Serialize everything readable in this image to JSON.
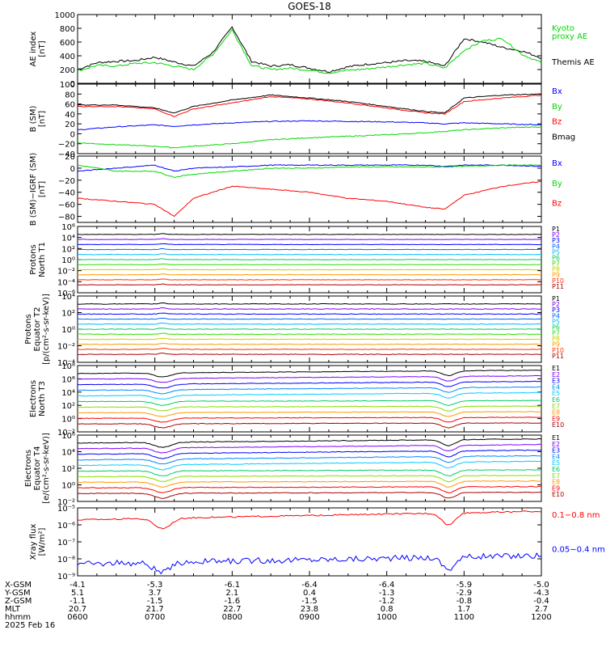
{
  "title": "GOES-18",
  "time_labels": [
    "0600",
    "0700",
    "0800",
    "0900",
    "1000",
    "1100",
    "1200"
  ],
  "footer": {
    "rows": [
      {
        "name": "X-GSM",
        "values": [
          "-4.1",
          "-5.3",
          "-6.1",
          "-6.4",
          "-6.4",
          "-5.9",
          "-5.0"
        ]
      },
      {
        "name": "Y-GSM",
        "values": [
          "5.1",
          "3.7",
          "2.1",
          "0.4",
          "-1.3",
          "-2.9",
          "-4.3"
        ]
      },
      {
        "name": "Z-GSM",
        "values": [
          "-1.1",
          "-1.5",
          "-1.6",
          "-1.5",
          "-1.2",
          "-0.8",
          "-0.4"
        ]
      },
      {
        "name": "MLT",
        "values": [
          "20.7",
          "21.7",
          "22.7",
          "23.8",
          "0.8",
          "1.7",
          "2.7"
        ]
      },
      {
        "name": "hhmm",
        "values": [
          "0600",
          "0700",
          "0800",
          "0900",
          "1000",
          "1100",
          "1200"
        ]
      }
    ],
    "date": "2025 Feb 16"
  },
  "chart_data": [
    {
      "type": "line",
      "ylabel": [
        "AE index",
        "[nT]"
      ],
      "yticks": [
        "1000",
        "800",
        "600",
        "400",
        "200",
        "0"
      ],
      "ylim": [
        0,
        1000
      ],
      "x": [
        6.0,
        6.25,
        6.5,
        6.75,
        7.0,
        7.25,
        7.5,
        7.75,
        8.0,
        8.25,
        8.5,
        8.75,
        9.0,
        9.25,
        9.5,
        9.75,
        10.0,
        10.25,
        10.5,
        10.75,
        11.0,
        11.25,
        11.5,
        11.75,
        12.0
      ],
      "series": [
        {
          "name": "Themis AE",
          "color": "#000000",
          "values": [
            200,
            300,
            320,
            330,
            380,
            310,
            250,
            450,
            820,
            320,
            250,
            270,
            220,
            170,
            240,
            280,
            300,
            330,
            320,
            250,
            650,
            600,
            520,
            470,
            370
          ]
        },
        {
          "name": "Kyoto proxy AE",
          "color": "#00d800",
          "values": [
            180,
            260,
            250,
            290,
            300,
            250,
            200,
            420,
            780,
            260,
            200,
            220,
            190,
            150,
            190,
            210,
            240,
            270,
            290,
            220,
            480,
            620,
            650,
            420,
            300
          ]
        }
      ],
      "legend": [
        {
          "text": "Kyoto",
          "color": "#00d800"
        },
        {
          "text": "proxy AE",
          "color": "#00d800"
        },
        {
          "text": "Themis AE",
          "color": "#000000"
        }
      ]
    },
    {
      "type": "line",
      "ylabel": [
        "B (SM)",
        "[nT]"
      ],
      "yticks": [
        "100",
        "80",
        "60",
        "40",
        "20",
        "0",
        "−20",
        "−40"
      ],
      "ylim": [
        -40,
        100
      ],
      "x": [
        6.0,
        6.5,
        7.0,
        7.25,
        7.5,
        8.0,
        8.5,
        9.0,
        9.5,
        10.0,
        10.5,
        10.75,
        11.0,
        11.5,
        12.0
      ],
      "series": [
        {
          "name": "Bx",
          "color": "#0000ff",
          "values": [
            8,
            14,
            18,
            15,
            18,
            22,
            25,
            26,
            25,
            24,
            22,
            20,
            22,
            20,
            18
          ]
        },
        {
          "name": "By",
          "color": "#00d800",
          "values": [
            -18,
            -22,
            -25,
            -28,
            -25,
            -20,
            -12,
            -8,
            -5,
            -2,
            2,
            5,
            8,
            12,
            14
          ]
        },
        {
          "name": "Bz",
          "color": "#ff0000",
          "values": [
            55,
            55,
            50,
            35,
            50,
            62,
            75,
            70,
            62,
            52,
            42,
            40,
            65,
            72,
            78
          ]
        },
        {
          "name": "Bmag",
          "color": "#000000",
          "values": [
            58,
            58,
            52,
            42,
            55,
            68,
            78,
            72,
            65,
            55,
            45,
            42,
            72,
            78,
            80
          ]
        }
      ],
      "legend": [
        {
          "text": "Bx",
          "color": "#0000ff"
        },
        {
          "text": "By",
          "color": "#00d800"
        },
        {
          "text": "Bz",
          "color": "#ff0000"
        },
        {
          "text": "Bmag",
          "color": "#000000"
        }
      ]
    },
    {
      "type": "line",
      "ylabel": [
        "B (SM)−IGRF (SM)",
        "[nT]"
      ],
      "yticks": [
        "20",
        "0",
        "−20",
        "−40",
        "−60",
        "−80"
      ],
      "ylim": [
        -90,
        20
      ],
      "x": [
        6.0,
        6.5,
        7.0,
        7.25,
        7.5,
        8.0,
        8.5,
        9.0,
        9.5,
        10.0,
        10.5,
        10.75,
        11.0,
        11.5,
        12.0
      ],
      "series": [
        {
          "name": "Bx",
          "color": "#0000ff",
          "values": [
            -5,
            0,
            5,
            -5,
            0,
            2,
            5,
            5,
            5,
            5,
            5,
            3,
            5,
            5,
            3
          ]
        },
        {
          "name": "By",
          "color": "#00d800",
          "values": [
            5,
            -5,
            -5,
            -15,
            -10,
            -5,
            0,
            0,
            2,
            2,
            2,
            2,
            3,
            5,
            5
          ]
        },
        {
          "name": "Bz",
          "color": "#ff0000",
          "values": [
            -50,
            -55,
            -60,
            -80,
            -50,
            -30,
            -35,
            -40,
            -50,
            -55,
            -65,
            -68,
            -45,
            -30,
            -22
          ]
        }
      ],
      "legend": [
        {
          "text": "Bx",
          "color": "#0000ff"
        },
        {
          "text": "By",
          "color": "#00d800"
        },
        {
          "text": "Bz",
          "color": "#ff0000"
        }
      ]
    },
    {
      "type": "line",
      "log": true,
      "ylabel": [
        "Protons",
        "North T1"
      ],
      "yticks": [
        "10⁶",
        "10⁴",
        "10²",
        "10⁰",
        "10⁻²",
        "10⁻⁴",
        "10⁻⁶"
      ],
      "ylim": [
        -6,
        6
      ],
      "legend": [
        {
          "text": "P1",
          "color": "#000000"
        },
        {
          "text": "P2",
          "color": "#7f00ff"
        },
        {
          "text": "P3",
          "color": "#0000ff"
        },
        {
          "text": "P4",
          "color": "#0066ff"
        },
        {
          "text": "P5",
          "color": "#00bbff"
        },
        {
          "text": "P6",
          "color": "#00cc66"
        },
        {
          "text": "P7",
          "color": "#33dd00"
        },
        {
          "text": "P8",
          "color": "#cccc00"
        },
        {
          "text": "P9",
          "color": "#ff9900"
        },
        {
          "text": "P10",
          "color": "#ff3300"
        },
        {
          "text": "P11",
          "color": "#b00000"
        }
      ]
    },
    {
      "type": "line",
      "log": true,
      "ylabel": [
        "Protons",
        "Equator T2",
        "[p/(cm²-s-sr-keV)]"
      ],
      "yticks": [
        "10⁴",
        "10²",
        "10⁰",
        "10⁻²",
        "10⁻⁴"
      ],
      "ylim": [
        -5,
        4
      ],
      "legend": [
        {
          "text": "P1",
          "color": "#000000"
        },
        {
          "text": "P2",
          "color": "#7f00ff"
        },
        {
          "text": "P3",
          "color": "#0000ff"
        },
        {
          "text": "P4",
          "color": "#0066ff"
        },
        {
          "text": "P5",
          "color": "#00bbff"
        },
        {
          "text": "P6",
          "color": "#00cc66"
        },
        {
          "text": "P7",
          "color": "#33dd00"
        },
        {
          "text": "P8",
          "color": "#cccc00"
        },
        {
          "text": "P9",
          "color": "#ff9900"
        },
        {
          "text": "P10",
          "color": "#ff3300"
        },
        {
          "text": "P11",
          "color": "#b00000"
        }
      ]
    },
    {
      "type": "line",
      "log": true,
      "ylabel": [
        "Electrons",
        "North T3"
      ],
      "yticks": [
        "10⁸",
        "10⁶",
        "10⁴",
        "10²",
        "10⁰",
        "10⁻²"
      ],
      "ylim": [
        -2,
        8
      ],
      "legend": [
        {
          "text": "E1",
          "color": "#000000"
        },
        {
          "text": "E2",
          "color": "#7f00ff"
        },
        {
          "text": "E3",
          "color": "#0000ff"
        },
        {
          "text": "E4",
          "color": "#0088ff"
        },
        {
          "text": "E5",
          "color": "#00ccff"
        },
        {
          "text": "E6",
          "color": "#00cc66"
        },
        {
          "text": "E7",
          "color": "#88dd00"
        },
        {
          "text": "E8",
          "color": "#ff9900"
        },
        {
          "text": "E9",
          "color": "#ff0000"
        },
        {
          "text": "E10",
          "color": "#aa0000"
        }
      ]
    },
    {
      "type": "line",
      "log": true,
      "ylabel": [
        "Electrons",
        "Equator T4",
        "[e/(cm²-s-sr-keV)]"
      ],
      "yticks": [
        "10⁶",
        "10⁴",
        "10²",
        "10⁰",
        "10⁻²"
      ],
      "ylim": [
        -2,
        6
      ],
      "legend": [
        {
          "text": "E1",
          "color": "#000000"
        },
        {
          "text": "E2",
          "color": "#7f00ff"
        },
        {
          "text": "E3",
          "color": "#0000ff"
        },
        {
          "text": "E4",
          "color": "#0088ff"
        },
        {
          "text": "E5",
          "color": "#00ccff"
        },
        {
          "text": "E6",
          "color": "#00cc66"
        },
        {
          "text": "E7",
          "color": "#88dd00"
        },
        {
          "text": "E8",
          "color": "#ff9900"
        },
        {
          "text": "E9",
          "color": "#ff0000"
        },
        {
          "text": "E10",
          "color": "#aa0000"
        }
      ]
    },
    {
      "type": "line",
      "log": true,
      "ylabel": [
        "Xray flux",
        "[W/m²]"
      ],
      "yticks": [
        "10⁻⁵",
        "10⁻⁶",
        "10⁻⁷",
        "10⁻⁸",
        "10⁻⁹"
      ],
      "ylim": [
        -9,
        -5
      ],
      "legend": [
        {
          "text": "0.1−0.8 nm",
          "color": "#ff0000"
        },
        {
          "text": "0.05−0.4 nm",
          "color": "#0000ff"
        }
      ]
    }
  ]
}
